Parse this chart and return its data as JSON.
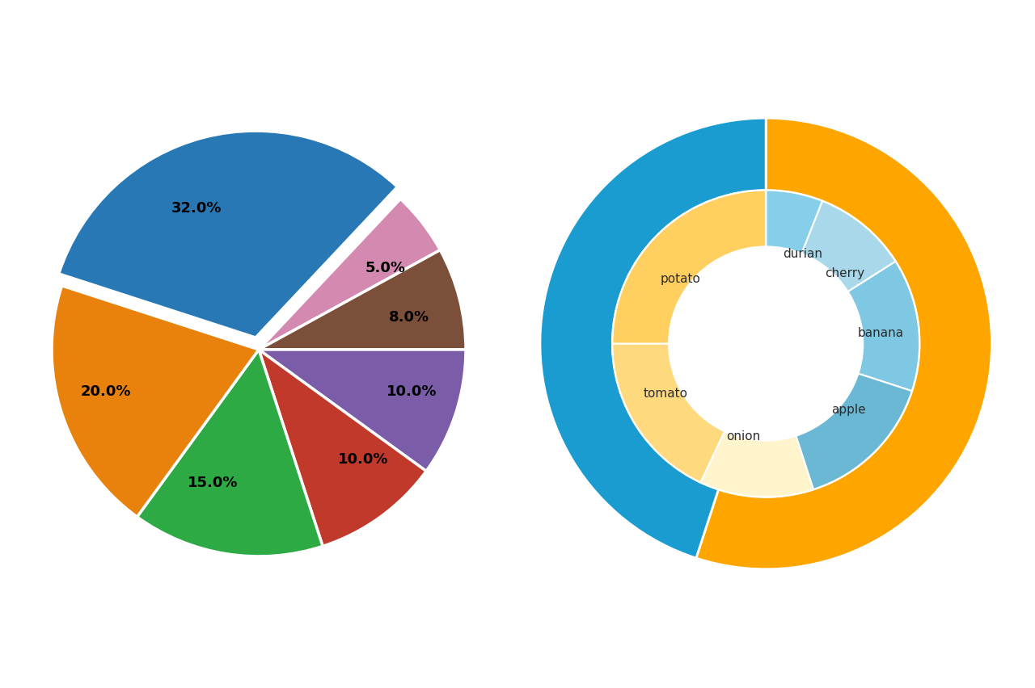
{
  "pie_values": [
    32.0,
    5.0,
    8.0,
    10.0,
    10.0,
    15.0,
    20.0
  ],
  "pie_colors": [
    "#2878b5",
    "#d48ab0",
    "#7b4f3a",
    "#7a5ca8",
    "#c0392b",
    "#2eaa44",
    "#e8820c"
  ],
  "pie_labels": [
    "32.0%",
    "5.0%",
    "8.0%",
    "10.0%",
    "10.0%",
    "15.0%",
    "20.0%"
  ],
  "pie_explode": [
    0.06,
    0,
    0,
    0,
    0,
    0,
    0
  ],
  "pie_startangle": 162,
  "donut_outer_values": [
    55,
    45
  ],
  "donut_outer_colors": [
    "#FFA500",
    "#1B9CD0"
  ],
  "donut_outer_startangle": 90,
  "donut_inner_labels": [
    "durian",
    "cherry",
    "banana",
    "apple",
    "onion",
    "tomato",
    "potato"
  ],
  "donut_inner_values": [
    6,
    10,
    14,
    15,
    12,
    18,
    25
  ],
  "donut_inner_colors": [
    "#87CEEB",
    "#A8D8EA",
    "#7EC8E3",
    "#6BB8D4",
    "#FFF4CC",
    "#FFD97D",
    "#FFD060"
  ],
  "donut_inner_startangle": 90,
  "label_fontsize": 11,
  "background_color": "#ffffff",
  "figsize": [
    12.8,
    8.53
  ],
  "dpi": 100
}
